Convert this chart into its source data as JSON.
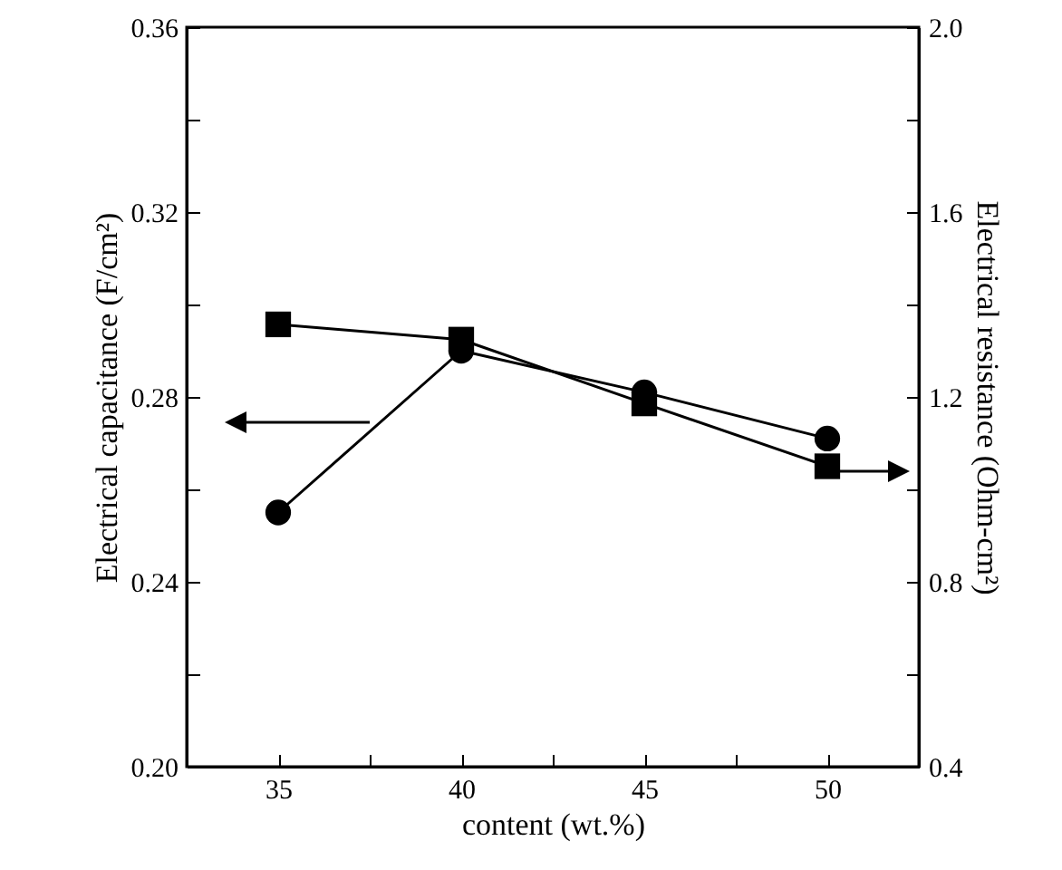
{
  "chart_data": {
    "type": "line",
    "xlabel": "content (wt.%)",
    "ylabel": "Electrical capacitance (F/cm²)",
    "y2label": "Electrical resistance (Ohm-cm²)",
    "x": [
      35,
      40,
      45,
      50
    ],
    "xlim": [
      32.5,
      52.5
    ],
    "xticks": [
      {
        "value": 32.5,
        "label": null
      },
      35,
      {
        "value": 37.5,
        "label": null
      },
      40,
      {
        "value": 42.5,
        "label": null
      },
      45,
      {
        "value": 47.5,
        "label": null
      },
      50,
      {
        "value": 52.5,
        "label": null
      }
    ],
    "ylim": [
      0.2,
      0.36
    ],
    "yticks": [
      {
        "value": 0.2,
        "label": "0.20"
      },
      {
        "value": 0.22,
        "label": null
      },
      0.24,
      {
        "value": 0.26,
        "label": null
      },
      0.28,
      {
        "value": 0.3,
        "label": null
      },
      0.32,
      {
        "value": 0.34,
        "label": null
      },
      0.36
    ],
    "y2lim": [
      0.4,
      2.0
    ],
    "y2ticks": [
      0.4,
      {
        "value": 0.6,
        "label": null
      },
      0.8,
      {
        "value": 1.0,
        "label": null
      },
      1.2,
      {
        "value": 1.4,
        "label": null
      },
      1.6,
      {
        "value": 1.8,
        "label": null
      },
      {
        "value": 2.0,
        "label": "2.0"
      }
    ],
    "grid": false,
    "line_style": "solid",
    "series": [
      {
        "color": "#000000",
        "marker": "circle",
        "values": [
          0.255,
          0.29,
          0.281,
          0.271
        ]
      },
      {
        "color": "#000000",
        "marker": "square",
        "axis": "y2",
        "values": [
          1.357,
          1.324,
          1.186,
          1.05
        ]
      }
    ]
  }
}
